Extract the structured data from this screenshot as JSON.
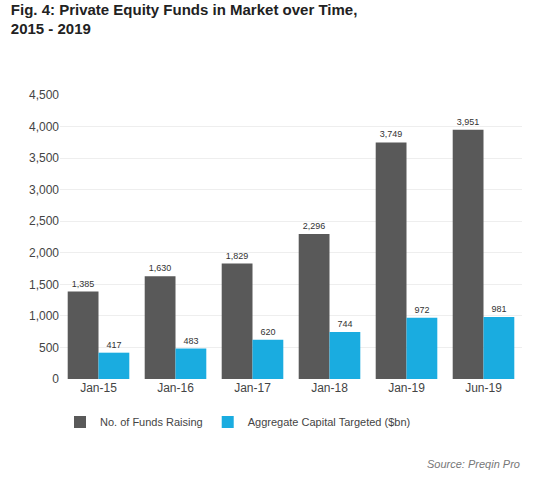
{
  "chart_data": {
    "type": "bar",
    "title": "Fig. 4: Private Equity Funds in Market over Time,",
    "subtitle": "2015 - 2019",
    "categories": [
      "Jan-15",
      "Jan-16",
      "Jan-17",
      "Jan-18",
      "Jan-19",
      "Jun-19"
    ],
    "series": [
      {
        "name": "No. of Funds Raising",
        "color": "#595959",
        "values": [
          1385,
          1630,
          1829,
          2296,
          3749,
          3951
        ],
        "value_labels": [
          "1,385",
          "1,630",
          "1,829",
          "2,296",
          "3,749",
          "3,951"
        ]
      },
      {
        "name": "Aggregate Capital Targeted ($bn)",
        "color": "#1aace0",
        "values": [
          417,
          483,
          620,
          744,
          972,
          981
        ]
      }
    ],
    "ylim": [
      0,
      4500
    ],
    "yticks": [
      0,
      500,
      {
        "value": 1000,
        "label": "1,000"
      },
      {
        "value": 1500,
        "label": "1,500"
      },
      {
        "value": 2000,
        "label": "2,000"
      },
      {
        "value": 2500,
        "label": "2,500"
      },
      {
        "value": 3000,
        "label": "3,000"
      },
      {
        "value": 3500,
        "label": "3,500"
      },
      {
        "value": 4000,
        "label": "4,000"
      },
      {
        "value": 4500,
        "label": "4,500"
      }
    ],
    "grid": true,
    "legend": "lower left",
    "data_labels": true,
    "annotations": [
      "Source: Preqin Pro"
    ]
  }
}
